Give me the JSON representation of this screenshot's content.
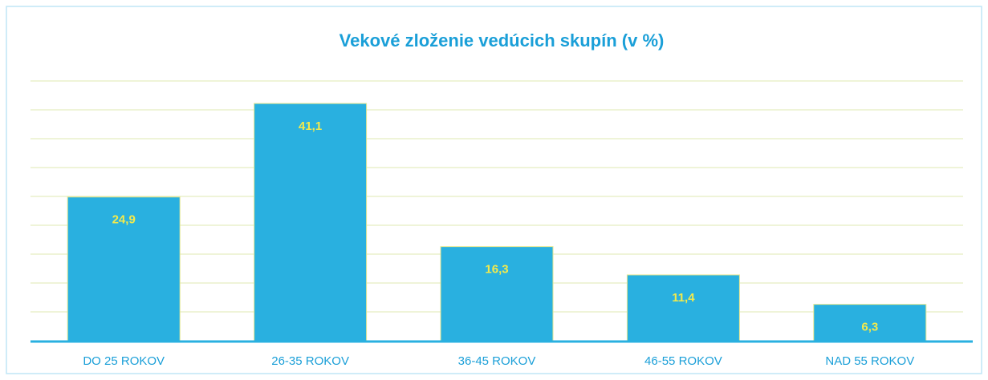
{
  "chart_data": {
    "type": "bar",
    "title": "Vekové zloženie vedúcich skupín (v %)",
    "categories": [
      "DO 25 ROKOV",
      "26-35 ROKOV",
      "36-45 ROKOV",
      "46-55 ROKOV",
      "NAD 55 ROKOV"
    ],
    "values": [
      24.9,
      41.1,
      16.3,
      11.4,
      6.3
    ],
    "value_labels": [
      "24,9",
      "41,1",
      "16,3",
      "11,4",
      "6,3"
    ],
    "color": "#29b0e0",
    "ylim": [
      0,
      45
    ],
    "yticks": [
      0,
      5,
      10,
      15,
      20,
      25,
      30,
      35,
      40,
      45
    ],
    "grid": true
  }
}
